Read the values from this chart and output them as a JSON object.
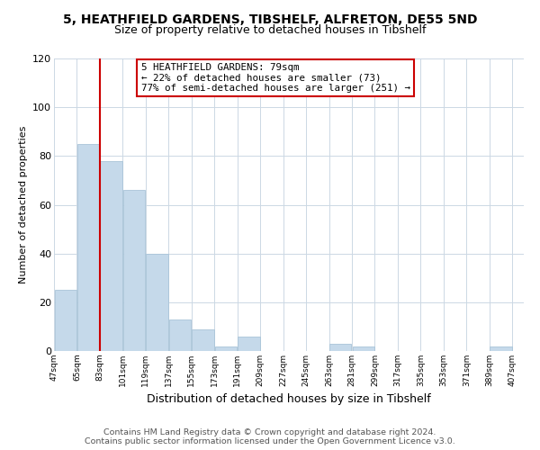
{
  "title1": "5, HEATHFIELD GARDENS, TIBSHELF, ALFRETON, DE55 5ND",
  "title2": "Size of property relative to detached houses in Tibshelf",
  "xlabel": "Distribution of detached houses by size in Tibshelf",
  "ylabel": "Number of detached properties",
  "bar_left_edges": [
    47,
    65,
    83,
    101,
    119,
    137,
    155,
    173,
    191,
    209,
    227,
    245,
    263,
    281,
    299,
    317,
    335,
    353,
    371,
    389
  ],
  "bar_heights": [
    25,
    85,
    78,
    66,
    40,
    13,
    9,
    2,
    6,
    0,
    0,
    0,
    3,
    2,
    0,
    0,
    0,
    0,
    0,
    2
  ],
  "bin_width": 18,
  "tick_labels": [
    "47sqm",
    "65sqm",
    "83sqm",
    "101sqm",
    "119sqm",
    "137sqm",
    "155sqm",
    "173sqm",
    "191sqm",
    "209sqm",
    "227sqm",
    "245sqm",
    "263sqm",
    "281sqm",
    "299sqm",
    "317sqm",
    "335sqm",
    "353sqm",
    "371sqm",
    "389sqm",
    "407sqm"
  ],
  "bar_color": "#c5d9ea",
  "bar_edge_color": "#aac4d8",
  "vertical_line_x": 83,
  "vertical_line_color": "#cc0000",
  "annotation_title": "5 HEATHFIELD GARDENS: 79sqm",
  "annotation_line1": "← 22% of detached houses are smaller (73)",
  "annotation_line2": "77% of semi-detached houses are larger (251) →",
  "annotation_box_edgecolor": "#cc0000",
  "annotation_box_facecolor": "#ffffff",
  "ylim": [
    0,
    120
  ],
  "yticks": [
    0,
    20,
    40,
    60,
    80,
    100,
    120
  ],
  "footer1": "Contains HM Land Registry data © Crown copyright and database right 2024.",
  "footer2": "Contains public sector information licensed under the Open Government Licence v3.0.",
  "background_color": "#ffffff",
  "grid_color": "#ccd8e4"
}
